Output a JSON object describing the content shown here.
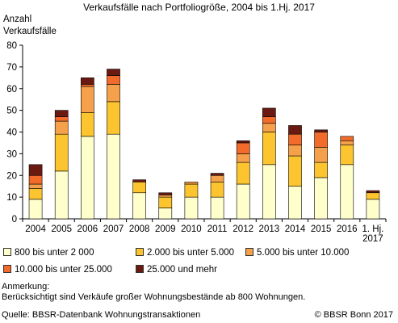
{
  "chart_data": {
    "type": "bar",
    "stacked": true,
    "title": "Verkaufsfälle nach Portfoliogröße, 2004 bis 1.Hj. 2017",
    "ylabel_lines": [
      "Anzahl",
      "Verkaufsfälle"
    ],
    "ylim": [
      0,
      80
    ],
    "yticks": [
      0,
      10,
      20,
      30,
      40,
      50,
      60,
      70,
      80
    ],
    "grid": false,
    "legend_position": "bottom",
    "categories": [
      "2004",
      "2005",
      "2006",
      "2007",
      "2008",
      "2009",
      "2010",
      "2011",
      "2012",
      "2013",
      "2014",
      "2015",
      "2016",
      "1. Hj. 2017"
    ],
    "series": [
      {
        "name": "800 bis unter 2 000",
        "color": "#ffffcc",
        "values": [
          9,
          22,
          38,
          39,
          12,
          5,
          10,
          10,
          16,
          25,
          15,
          19,
          25,
          9
        ]
      },
      {
        "name": "2.000 bis unter 5.000",
        "color": "#fcc52f",
        "values": [
          5,
          17,
          11,
          15,
          5,
          5,
          6,
          7,
          10,
          15,
          14,
          7,
          9,
          3
        ]
      },
      {
        "name": "5.000 bis unter 10.000",
        "color": "#f5a04a",
        "values": [
          2,
          6,
          12,
          8,
          0,
          1,
          1,
          3,
          4,
          4,
          5,
          7,
          2,
          0
        ]
      },
      {
        "name": "10.000 bis unter 25.000",
        "color": "#f26b2a",
        "values": [
          4,
          2,
          1,
          4,
          0,
          0,
          0,
          0,
          5,
          3,
          5,
          7,
          2,
          0
        ]
      },
      {
        "name": "25.000 und mehr",
        "color": "#6b1a12",
        "values": [
          5,
          3,
          3,
          3,
          1,
          1,
          0,
          1,
          1,
          4,
          4,
          1,
          0,
          1
        ]
      }
    ]
  },
  "notes": {
    "heading": "Anmerkung:",
    "text": "Berücksichtigt sind Verkäufe großer Wohnungsbestände ab 800 Wohnungen."
  },
  "footer": {
    "source": "Quelle: BBSR-Datenbank Wohnungstransaktionen",
    "copyright": "© BBSR Bonn 2017"
  }
}
